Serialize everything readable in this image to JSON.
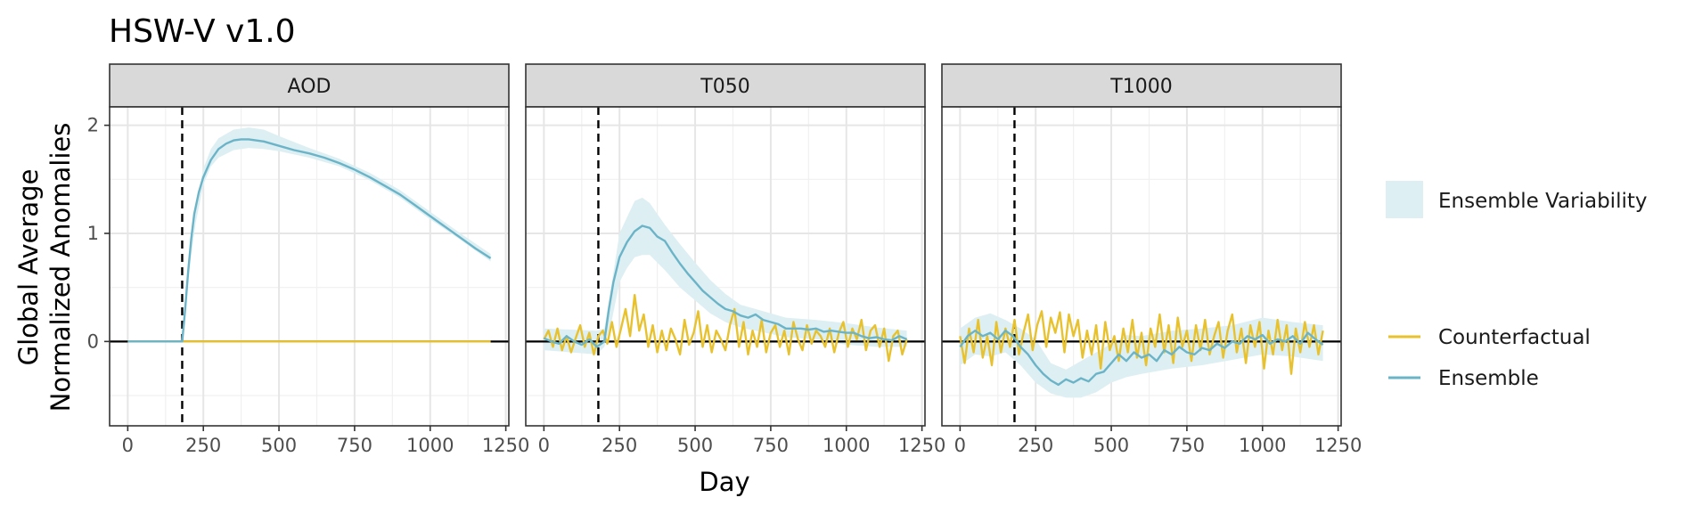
{
  "chart_data": {
    "type": "line",
    "title": "HSW-V v1.0",
    "xlabel": "Day",
    "ylabel": [
      "Global Average",
      "Normalized Anomalies"
    ],
    "xlim": [
      -60,
      1260
    ],
    "ylim": [
      -0.78,
      2.17
    ],
    "x_ticks": [
      0,
      250,
      500,
      750,
      1000,
      1250
    ],
    "x_tick_labels": [
      "0",
      "250",
      "500",
      "750",
      "1000",
      "1250"
    ],
    "y_ticks": [
      0,
      1,
      2
    ],
    "y_tick_labels": [
      "0",
      "1",
      "2"
    ],
    "event_day": 180,
    "reference_line": 0,
    "grid": true,
    "legend_position": "right",
    "legend": {
      "band": "Ensemble Variability",
      "lines": [
        {
          "name": "Counterfactual",
          "color": "#E8C22E"
        },
        {
          "name": "Ensemble",
          "color": "#6BB4C8"
        }
      ]
    },
    "colors": {
      "counterfactual": "#E8C22E",
      "ensemble": "#6BB4C8",
      "band": "#DDEFF2"
    },
    "panels": [
      {
        "name": "AOD",
        "ensemble": {
          "x": [
            0,
            180,
            190,
            200,
            210,
            220,
            235,
            250,
            275,
            300,
            325,
            350,
            375,
            400,
            450,
            500,
            550,
            600,
            650,
            700,
            750,
            800,
            850,
            900,
            950,
            1000,
            1050,
            1100,
            1150,
            1200
          ],
          "y": [
            0,
            0,
            0.3,
            0.65,
            0.95,
            1.18,
            1.38,
            1.52,
            1.68,
            1.78,
            1.83,
            1.86,
            1.87,
            1.87,
            1.85,
            1.81,
            1.77,
            1.74,
            1.7,
            1.65,
            1.59,
            1.52,
            1.44,
            1.36,
            1.26,
            1.16,
            1.06,
            0.96,
            0.86,
            0.77
          ]
        },
        "band": {
          "x": [
            180,
            200,
            225,
            250,
            275,
            300,
            350,
            400,
            450,
            500,
            600,
            700,
            800,
            900,
            1000,
            1100,
            1200
          ],
          "lower": [
            0,
            0.6,
            1.1,
            1.45,
            1.62,
            1.7,
            1.77,
            1.79,
            1.78,
            1.76,
            1.7,
            1.62,
            1.49,
            1.33,
            1.13,
            0.94,
            0.74
          ],
          "upper": [
            0,
            0.7,
            1.25,
            1.6,
            1.78,
            1.88,
            1.96,
            1.98,
            1.96,
            1.9,
            1.79,
            1.69,
            1.56,
            1.4,
            1.2,
            1.0,
            0.81
          ]
        },
        "counterfactual": {
          "x": [
            0,
            1200
          ],
          "y": [
            0,
            0
          ]
        }
      },
      {
        "name": "T050",
        "ensemble": {
          "x": [
            0,
            25,
            50,
            75,
            100,
            125,
            150,
            175,
            200,
            215,
            230,
            250,
            275,
            300,
            325,
            350,
            375,
            400,
            425,
            450,
            475,
            500,
            525,
            550,
            575,
            600,
            625,
            650,
            675,
            700,
            725,
            750,
            775,
            800,
            825,
            850,
            875,
            900,
            925,
            950,
            975,
            1000,
            1025,
            1050,
            1075,
            1100,
            1125,
            1150,
            1175,
            1200
          ],
          "y": [
            0.03,
            0.0,
            -0.02,
            0.05,
            0.0,
            -0.03,
            0.02,
            -0.05,
            0.0,
            0.3,
            0.55,
            0.78,
            0.92,
            1.02,
            1.07,
            1.05,
            0.97,
            0.93,
            0.82,
            0.72,
            0.63,
            0.55,
            0.47,
            0.41,
            0.35,
            0.3,
            0.28,
            0.24,
            0.22,
            0.25,
            0.2,
            0.18,
            0.16,
            0.12,
            0.12,
            0.12,
            0.11,
            0.12,
            0.09,
            0.1,
            0.09,
            0.08,
            0.08,
            0.05,
            0.03,
            0.04,
            0.02,
            0.01,
            0.05,
            0.02
          ]
        },
        "band": {
          "x": [
            0,
            175,
            200,
            225,
            250,
            275,
            300,
            325,
            350,
            375,
            400,
            450,
            500,
            550,
            600,
            650,
            700,
            800,
            900,
            1000,
            1100,
            1200
          ],
          "lower": [
            -0.08,
            -0.12,
            -0.05,
            0.2,
            0.55,
            0.68,
            0.78,
            0.8,
            0.8,
            0.73,
            0.66,
            0.5,
            0.38,
            0.26,
            0.18,
            0.13,
            0.1,
            0.04,
            0.02,
            -0.03,
            -0.05,
            -0.05
          ],
          "upper": [
            0.12,
            0.1,
            0.12,
            0.55,
            1.0,
            1.15,
            1.3,
            1.33,
            1.28,
            1.18,
            1.08,
            0.9,
            0.73,
            0.57,
            0.44,
            0.34,
            0.3,
            0.22,
            0.2,
            0.17,
            0.13,
            0.1
          ]
        },
        "counterfactual": {
          "x": [
            0,
            15,
            30,
            45,
            60,
            75,
            90,
            105,
            120,
            135,
            150,
            165,
            180,
            195,
            210,
            225,
            240,
            255,
            270,
            285,
            300,
            315,
            330,
            345,
            360,
            375,
            390,
            405,
            420,
            435,
            450,
            465,
            480,
            495,
            510,
            525,
            540,
            555,
            570,
            585,
            600,
            615,
            630,
            645,
            660,
            675,
            690,
            705,
            720,
            735,
            750,
            765,
            780,
            795,
            810,
            825,
            840,
            855,
            870,
            885,
            900,
            915,
            930,
            945,
            960,
            975,
            990,
            1005,
            1020,
            1035,
            1050,
            1065,
            1080,
            1095,
            1110,
            1125,
            1140,
            1155,
            1170,
            1185,
            1200
          ],
          "y": [
            0.02,
            0.1,
            -0.05,
            0.12,
            -0.08,
            0.05,
            -0.1,
            0.03,
            0.15,
            -0.05,
            0.08,
            -0.12,
            0.05,
            0.1,
            -0.02,
            0.18,
            -0.05,
            0.12,
            0.3,
            0.05,
            0.43,
            0.1,
            0.25,
            -0.05,
            0.15,
            -0.1,
            0.1,
            -0.08,
            0.12,
            0.02,
            -0.12,
            0.2,
            -0.03,
            0.08,
            0.28,
            -0.05,
            0.15,
            -0.1,
            0.1,
            0.02,
            -0.08,
            0.15,
            0.3,
            -0.05,
            0.18,
            -0.12,
            0.1,
            -0.05,
            0.2,
            -0.1,
            0.08,
            0.15,
            -0.05,
            0.1,
            -0.12,
            0.18,
            0.02,
            -0.08,
            0.15,
            -0.02,
            0.1,
            0.05,
            -0.05,
            0.12,
            -0.1,
            0.08,
            0.18,
            -0.05,
            0.12,
            0.02,
            0.2,
            -0.08,
            0.1,
            0.15,
            -0.05,
            0.12,
            -0.18,
            0.05,
            0.1,
            -0.12,
            0.02
          ]
        }
      },
      {
        "name": "T1000",
        "ensemble": {
          "x": [
            0,
            25,
            50,
            75,
            100,
            125,
            150,
            175,
            200,
            225,
            250,
            275,
            300,
            325,
            350,
            375,
            400,
            425,
            450,
            475,
            500,
            525,
            550,
            575,
            600,
            625,
            650,
            675,
            700,
            725,
            750,
            775,
            800,
            825,
            850,
            875,
            900,
            925,
            950,
            975,
            1000,
            1025,
            1050,
            1075,
            1100,
            1125,
            1150,
            1175,
            1200
          ],
          "y": [
            -0.05,
            0.05,
            0.1,
            0.05,
            0.08,
            0.02,
            0.1,
            0.05,
            -0.05,
            -0.12,
            -0.22,
            -0.3,
            -0.36,
            -0.4,
            -0.35,
            -0.38,
            -0.34,
            -0.37,
            -0.3,
            -0.28,
            -0.2,
            -0.12,
            -0.18,
            -0.1,
            -0.15,
            -0.12,
            -0.18,
            -0.08,
            -0.12,
            -0.05,
            -0.1,
            -0.12,
            -0.06,
            -0.08,
            -0.02,
            -0.06,
            0.0,
            -0.02,
            0.05,
            0.02,
            0.06,
            -0.02,
            0.02,
            0.0,
            0.05,
            -0.02,
            0.08,
            0.02,
            -0.03
          ]
        },
        "band": {
          "x": [
            0,
            50,
            100,
            150,
            200,
            250,
            300,
            350,
            400,
            450,
            500,
            550,
            600,
            700,
            800,
            900,
            1000,
            1100,
            1200
          ],
          "lower": [
            -0.22,
            -0.12,
            -0.14,
            -0.1,
            -0.22,
            -0.38,
            -0.48,
            -0.52,
            -0.52,
            -0.47,
            -0.38,
            -0.33,
            -0.3,
            -0.25,
            -0.22,
            -0.17,
            -0.12,
            -0.14,
            -0.18
          ],
          "upper": [
            0.12,
            0.22,
            0.26,
            0.2,
            0.12,
            0.02,
            -0.2,
            -0.26,
            -0.18,
            -0.1,
            -0.02,
            0.06,
            0.05,
            0.1,
            0.12,
            0.15,
            0.22,
            0.18,
            0.15
          ]
        },
        "counterfactual": {
          "x": [
            0,
            15,
            30,
            45,
            60,
            75,
            90,
            105,
            120,
            135,
            150,
            165,
            180,
            195,
            210,
            225,
            240,
            255,
            270,
            285,
            300,
            315,
            330,
            345,
            360,
            375,
            390,
            405,
            420,
            435,
            450,
            465,
            480,
            495,
            510,
            525,
            540,
            555,
            570,
            585,
            600,
            615,
            630,
            645,
            660,
            675,
            690,
            705,
            720,
            735,
            750,
            765,
            780,
            795,
            810,
            825,
            840,
            855,
            870,
            885,
            900,
            915,
            930,
            945,
            960,
            975,
            990,
            1005,
            1020,
            1035,
            1050,
            1065,
            1080,
            1095,
            1110,
            1125,
            1140,
            1155,
            1170,
            1185,
            1200
          ],
          "y": [
            0.05,
            -0.2,
            0.12,
            -0.1,
            0.2,
            -0.15,
            0.05,
            -0.22,
            0.18,
            -0.1,
            0.12,
            -0.05,
            0.2,
            -0.12,
            0.08,
            0.25,
            -0.08,
            0.15,
            0.28,
            -0.05,
            0.22,
            0.08,
            0.27,
            -0.1,
            0.25,
            0.05,
            0.2,
            -0.15,
            0.1,
            -0.12,
            0.15,
            -0.25,
            0.18,
            -0.08,
            0.05,
            -0.18,
            0.12,
            -0.1,
            0.2,
            -0.15,
            0.08,
            -0.22,
            0.12,
            -0.05,
            0.25,
            -0.1,
            0.15,
            -0.2,
            0.22,
            -0.05,
            0.1,
            -0.18,
            0.15,
            -0.08,
            0.2,
            -0.12,
            0.05,
            0.18,
            -0.15,
            0.1,
            0.25,
            -0.1,
            0.12,
            -0.2,
            0.15,
            -0.05,
            0.18,
            -0.25,
            0.1,
            -0.12,
            0.2,
            -0.08,
            0.15,
            -0.3,
            0.12,
            -0.1,
            0.18,
            -0.05,
            0.15,
            -0.12,
            0.1
          ]
        }
      }
    ]
  }
}
